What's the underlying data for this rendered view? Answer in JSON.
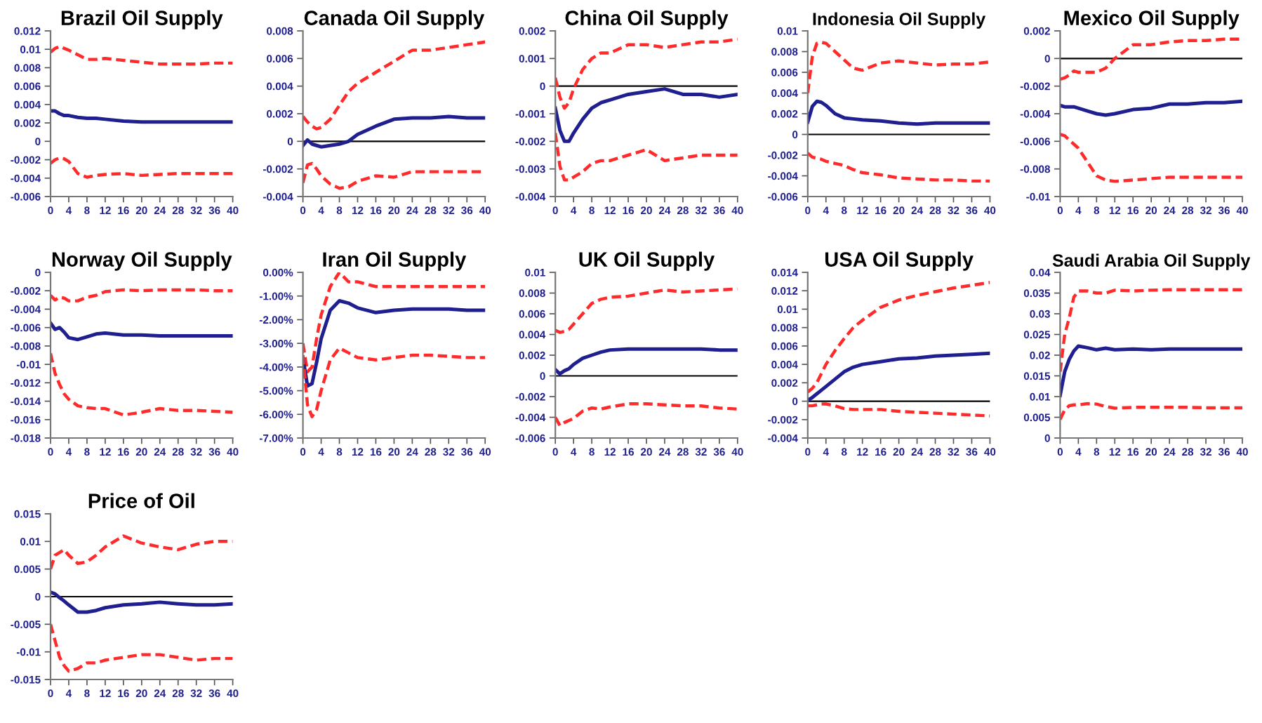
{
  "chart_data": [
    {
      "type": "line",
      "title": "Brazil Oil Supply",
      "x": [
        0,
        1,
        2,
        3,
        4,
        6,
        8,
        10,
        12,
        16,
        20,
        24,
        28,
        32,
        36,
        40
      ],
      "xlim": [
        0,
        40
      ],
      "xticks": [
        0,
        4,
        8,
        12,
        16,
        20,
        24,
        28,
        32,
        36,
        40
      ],
      "ylim": [
        -0.006,
        0.012
      ],
      "yticks": [
        -0.006,
        -0.004,
        -0.002,
        0,
        0.002,
        0.004,
        0.006,
        0.008,
        0.01,
        0.012
      ],
      "series": [
        {
          "color": "#ff2a2a",
          "line_style": "dashed",
          "values": [
            0.0097,
            0.0101,
            0.0103,
            0.0101,
            0.0099,
            0.0094,
            0.0089,
            0.0089,
            0.009,
            0.0088,
            0.0086,
            0.0084,
            0.0084,
            0.0084,
            0.0085,
            0.0085
          ]
        },
        {
          "color": "#1f1f8f",
          "line_style": "solid",
          "values": [
            0.0033,
            0.0033,
            0.003,
            0.0028,
            0.0028,
            0.0026,
            0.0025,
            0.0025,
            0.0024,
            0.0022,
            0.0021,
            0.0021,
            0.0021,
            0.0021,
            0.0021,
            0.0021
          ]
        },
        {
          "color": "#ff2a2a",
          "line_style": "dashed",
          "values": [
            -0.0024,
            -0.002,
            -0.0018,
            -0.0019,
            -0.0022,
            -0.0035,
            -0.0039,
            -0.0037,
            -0.0036,
            -0.0035,
            -0.0037,
            -0.0036,
            -0.0035,
            -0.0035,
            -0.0035,
            -0.0035
          ]
        }
      ]
    },
    {
      "type": "line",
      "title": "Canada Oil Supply",
      "x": [
        0,
        1,
        2,
        3,
        4,
        6,
        8,
        10,
        12,
        16,
        20,
        24,
        28,
        32,
        36,
        40
      ],
      "xlim": [
        0,
        40
      ],
      "xticks": [
        0,
        4,
        8,
        12,
        16,
        20,
        24,
        28,
        32,
        36,
        40
      ],
      "ylim": [
        -0.004,
        0.008
      ],
      "yticks": [
        -0.004,
        -0.002,
        0,
        0.002,
        0.004,
        0.006,
        0.008
      ],
      "ref_lines": [
        {
          "axis": "y",
          "value": 0
        }
      ],
      "series": [
        {
          "color": "#ff2a2a",
          "line_style": "dashed",
          "values": [
            0.0018,
            0.0014,
            0.0011,
            0.0009,
            0.001,
            0.0016,
            0.0026,
            0.0036,
            0.0042,
            0.005,
            0.0058,
            0.0066,
            0.0066,
            0.0068,
            0.007,
            0.0072
          ]
        },
        {
          "color": "#1f1f8f",
          "line_style": "solid",
          "values": [
            -0.0003,
            0.0001,
            -0.0002,
            -0.0003,
            -0.0004,
            -0.0003,
            -0.0002,
            0,
            0.0005,
            0.0011,
            0.0016,
            0.0017,
            0.0017,
            0.0018,
            0.0017,
            0.0017
          ]
        },
        {
          "color": "#ff2a2a",
          "line_style": "dashed",
          "values": [
            -0.003,
            -0.0017,
            -0.0016,
            -0.002,
            -0.0025,
            -0.0031,
            -0.0034,
            -0.0033,
            -0.0029,
            -0.0025,
            -0.0026,
            -0.0022,
            -0.0022,
            -0.0022,
            -0.0022,
            -0.0022
          ]
        }
      ]
    },
    {
      "type": "line",
      "title": "China Oil Supply",
      "x": [
        0,
        1,
        2,
        3,
        4,
        6,
        8,
        10,
        12,
        16,
        20,
        24,
        28,
        32,
        36,
        40
      ],
      "xlim": [
        0,
        40
      ],
      "xticks": [
        0,
        4,
        8,
        12,
        16,
        20,
        24,
        28,
        32,
        36,
        40
      ],
      "ylim": [
        -0.004,
        0.002
      ],
      "yticks": [
        -0.004,
        -0.003,
        -0.002,
        -0.001,
        0,
        0.001,
        0.002
      ],
      "ref_lines": [
        {
          "axis": "y",
          "value": 0
        }
      ],
      "series": [
        {
          "color": "#ff2a2a",
          "line_style": "dashed",
          "values": [
            0.0003,
            -0.0004,
            -0.0008,
            -0.0006,
            -0.0001,
            0.0006,
            0.001,
            0.0012,
            0.0012,
            0.0015,
            0.0015,
            0.0014,
            0.0015,
            0.0016,
            0.0016,
            0.0017
          ]
        },
        {
          "color": "#1f1f8f",
          "line_style": "solid",
          "values": [
            -0.0008,
            -0.0016,
            -0.002,
            -0.002,
            -0.0017,
            -0.0012,
            -0.0008,
            -0.0006,
            -0.0005,
            -0.0003,
            -0.0002,
            -0.0001,
            -0.0003,
            -0.0003,
            -0.0004,
            -0.0003
          ]
        },
        {
          "color": "#ff2a2a",
          "line_style": "dashed",
          "values": [
            -0.0017,
            -0.0029,
            -0.0034,
            -0.0034,
            -0.0033,
            -0.0031,
            -0.0028,
            -0.0027,
            -0.0027,
            -0.0025,
            -0.0023,
            -0.0027,
            -0.0026,
            -0.0025,
            -0.0025,
            -0.0025
          ]
        }
      ]
    },
    {
      "type": "line",
      "title": "Indonesia Oil Supply",
      "x": [
        0,
        1,
        2,
        3,
        4,
        6,
        8,
        10,
        12,
        16,
        20,
        24,
        28,
        32,
        36,
        40
      ],
      "xlim": [
        0,
        40
      ],
      "xticks": [
        0,
        4,
        8,
        12,
        16,
        20,
        24,
        28,
        32,
        36,
        40
      ],
      "ylim": [
        -0.006,
        0.01
      ],
      "yticks": [
        -0.006,
        -0.004,
        -0.002,
        0,
        0.002,
        0.004,
        0.006,
        0.008,
        0.01
      ],
      "ref_lines": [
        {
          "axis": "y",
          "value": 0
        }
      ],
      "series": [
        {
          "color": "#ff2a2a",
          "line_style": "dashed",
          "values": [
            0.004,
            0.0075,
            0.0088,
            0.0089,
            0.0088,
            0.008,
            0.0072,
            0.0064,
            0.0062,
            0.0069,
            0.0071,
            0.0069,
            0.0067,
            0.0068,
            0.0068,
            0.007
          ]
        },
        {
          "color": "#1f1f8f",
          "line_style": "solid",
          "values": [
            0.0012,
            0.0027,
            0.0032,
            0.0031,
            0.0028,
            0.002,
            0.0016,
            0.0015,
            0.0014,
            0.0013,
            0.0011,
            0.001,
            0.0011,
            0.0011,
            0.0011,
            0.0011
          ]
        },
        {
          "color": "#ff2a2a",
          "line_style": "dashed",
          "values": [
            -0.0018,
            -0.0022,
            -0.0023,
            -0.0024,
            -0.0026,
            -0.0028,
            -0.003,
            -0.0034,
            -0.0037,
            -0.0039,
            -0.0042,
            -0.0043,
            -0.0044,
            -0.0044,
            -0.0045,
            -0.0045
          ]
        }
      ]
    },
    {
      "type": "line",
      "title": "Mexico Oil Supply",
      "x": [
        0,
        1,
        2,
        3,
        4,
        6,
        8,
        10,
        12,
        16,
        20,
        24,
        28,
        32,
        36,
        40
      ],
      "xlim": [
        0,
        40
      ],
      "xticks": [
        0,
        4,
        8,
        12,
        16,
        20,
        24,
        28,
        32,
        36,
        40
      ],
      "ylim": [
        -0.01,
        0.002
      ],
      "yticks": [
        -0.01,
        -0.008,
        -0.006,
        -0.004,
        -0.002,
        0,
        0.002
      ],
      "ref_lines": [
        {
          "axis": "y",
          "value": 0
        }
      ],
      "series": [
        {
          "color": "#ff2a2a",
          "line_style": "dashed",
          "values": [
            -0.0015,
            -0.0014,
            -0.0012,
            -0.0009,
            -0.001,
            -0.001,
            -0.001,
            -0.0007,
            0,
            0.001,
            0.001,
            0.0012,
            0.0013,
            0.0013,
            0.0014,
            0.0014
          ]
        },
        {
          "color": "#1f1f8f",
          "line_style": "solid",
          "values": [
            -0.0034,
            -0.0035,
            -0.0035,
            -0.0035,
            -0.0036,
            -0.0038,
            -0.004,
            -0.0041,
            -0.004,
            -0.0037,
            -0.0036,
            -0.0033,
            -0.0033,
            -0.0032,
            -0.0032,
            -0.0031
          ]
        },
        {
          "color": "#ff2a2a",
          "line_style": "dashed",
          "values": [
            -0.0055,
            -0.0056,
            -0.0059,
            -0.0062,
            -0.0065,
            -0.0075,
            -0.0085,
            -0.0088,
            -0.0089,
            -0.0088,
            -0.0087,
            -0.0086,
            -0.0086,
            -0.0086,
            -0.0086,
            -0.0086
          ]
        }
      ]
    },
    {
      "type": "line",
      "title": "Norway Oil Supply",
      "x": [
        0,
        1,
        2,
        3,
        4,
        6,
        8,
        10,
        12,
        16,
        20,
        24,
        28,
        32,
        36,
        40
      ],
      "xlim": [
        0,
        40
      ],
      "xticks": [
        0,
        4,
        8,
        12,
        16,
        20,
        24,
        28,
        32,
        36,
        40
      ],
      "ylim": [
        -0.018,
        0
      ],
      "yticks": [
        -0.018,
        -0.016,
        -0.014,
        -0.012,
        -0.01,
        -0.008,
        -0.006,
        -0.004,
        -0.002,
        0
      ],
      "series": [
        {
          "color": "#ff2a2a",
          "line_style": "dashed",
          "values": [
            -0.0025,
            -0.003,
            -0.0027,
            -0.0028,
            -0.0031,
            -0.0031,
            -0.0027,
            -0.0025,
            -0.0021,
            -0.0019,
            -0.002,
            -0.0019,
            -0.0019,
            -0.0019,
            -0.002,
            -0.002
          ]
        },
        {
          "color": "#1f1f8f",
          "line_style": "solid",
          "values": [
            -0.0055,
            -0.0062,
            -0.006,
            -0.0065,
            -0.0071,
            -0.0073,
            -0.007,
            -0.0067,
            -0.0066,
            -0.0068,
            -0.0068,
            -0.0069,
            -0.0069,
            -0.0069,
            -0.0069,
            -0.0069
          ]
        },
        {
          "color": "#ff2a2a",
          "line_style": "dashed",
          "values": [
            -0.0088,
            -0.011,
            -0.0122,
            -0.0132,
            -0.0138,
            -0.0145,
            -0.0147,
            -0.0148,
            -0.0148,
            -0.0155,
            -0.0152,
            -0.0148,
            -0.015,
            -0.015,
            -0.0151,
            -0.0152
          ]
        }
      ]
    },
    {
      "type": "line",
      "title": "Iran Oil Supply",
      "x": [
        0,
        1,
        2,
        3,
        4,
        6,
        8,
        10,
        12,
        16,
        20,
        24,
        28,
        32,
        36,
        40
      ],
      "xlim": [
        0,
        40
      ],
      "xticks": [
        0,
        4,
        8,
        12,
        16,
        20,
        24,
        28,
        32,
        36,
        40
      ],
      "ylim": [
        -7,
        0
      ],
      "yticks": [
        {
          "value": -7,
          "label": "-7.00%"
        },
        {
          "value": -6,
          "label": "-6.00%"
        },
        {
          "value": -5,
          "label": "-5.00%"
        },
        {
          "value": -4,
          "label": "-4.00%"
        },
        {
          "value": -3,
          "label": "-3.00%"
        },
        {
          "value": -2,
          "label": "-2.00%"
        },
        {
          "value": -1,
          "label": "-1.00%"
        },
        {
          "value": 0,
          "label": "0.00%"
        }
      ],
      "series": [
        {
          "color": "#ff2a2a",
          "line_style": "dashed",
          "values": [
            -3.0,
            -4.2,
            -4.0,
            -2.8,
            -1.8,
            -0.6,
            0.0,
            -0.4,
            -0.4,
            -0.6,
            -0.6,
            -0.6,
            -0.6,
            -0.6,
            -0.6,
            -0.6
          ]
        },
        {
          "color": "#1f1f8f",
          "line_style": "solid",
          "values": [
            -3.6,
            -4.8,
            -4.7,
            -3.8,
            -2.8,
            -1.6,
            -1.2,
            -1.3,
            -1.5,
            -1.7,
            -1.6,
            -1.55,
            -1.55,
            -1.55,
            -1.6,
            -1.6
          ]
        },
        {
          "color": "#ff2a2a",
          "line_style": "dashed",
          "values": [
            -3.5,
            -5.6,
            -6.1,
            -5.8,
            -5.0,
            -3.7,
            -3.2,
            -3.4,
            -3.6,
            -3.7,
            -3.6,
            -3.5,
            -3.5,
            -3.55,
            -3.6,
            -3.6
          ]
        }
      ]
    },
    {
      "type": "line",
      "title": "UK Oil Supply",
      "x": [
        0,
        1,
        2,
        3,
        4,
        6,
        8,
        10,
        12,
        16,
        20,
        24,
        28,
        32,
        36,
        40
      ],
      "xlim": [
        0,
        40
      ],
      "xticks": [
        0,
        4,
        8,
        12,
        16,
        20,
        24,
        28,
        32,
        36,
        40
      ],
      "ylim": [
        -0.006,
        0.01
      ],
      "yticks": [
        -0.006,
        -0.004,
        -0.002,
        0,
        0.002,
        0.004,
        0.006,
        0.008,
        0.01
      ],
      "ref_lines": [
        {
          "axis": "y",
          "value": 0
        }
      ],
      "series": [
        {
          "color": "#ff2a2a",
          "line_style": "dashed",
          "values": [
            0.0044,
            0.0042,
            0.0043,
            0.0045,
            0.005,
            0.006,
            0.007,
            0.0074,
            0.0076,
            0.0077,
            0.008,
            0.0083,
            0.0081,
            0.0082,
            0.0083,
            0.0084
          ]
        },
        {
          "color": "#1f1f8f",
          "line_style": "solid",
          "values": [
            0.0006,
            0.0002,
            0.0005,
            0.0007,
            0.0011,
            0.0017,
            0.002,
            0.0023,
            0.0025,
            0.0026,
            0.0026,
            0.0026,
            0.0026,
            0.0026,
            0.0025,
            0.0025
          ]
        },
        {
          "color": "#ff2a2a",
          "line_style": "dashed",
          "values": [
            -0.004,
            -0.0048,
            -0.0045,
            -0.0043,
            -0.0041,
            -0.0034,
            -0.0031,
            -0.0032,
            -0.003,
            -0.0027,
            -0.0027,
            -0.0028,
            -0.0029,
            -0.0029,
            -0.0031,
            -0.0032
          ]
        }
      ]
    },
    {
      "type": "line",
      "title": "USA Oil Supply",
      "x": [
        0,
        1,
        2,
        3,
        4,
        6,
        8,
        10,
        12,
        16,
        20,
        24,
        28,
        32,
        36,
        40
      ],
      "xlim": [
        0,
        40
      ],
      "xticks": [
        0,
        4,
        8,
        12,
        16,
        20,
        24,
        28,
        32,
        36,
        40
      ],
      "ylim": [
        -0.004,
        0.014
      ],
      "yticks": [
        -0.004,
        -0.002,
        0,
        0.002,
        0.004,
        0.006,
        0.008,
        0.01,
        0.012,
        0.014
      ],
      "ref_lines": [
        {
          "axis": "y",
          "value": 0
        }
      ],
      "series": [
        {
          "color": "#ff2a2a",
          "line_style": "dashed",
          "values": [
            0.001,
            0.0014,
            0.002,
            0.003,
            0.004,
            0.0055,
            0.0068,
            0.008,
            0.0088,
            0.0102,
            0.011,
            0.0115,
            0.0119,
            0.0123,
            0.0126,
            0.0129
          ]
        },
        {
          "color": "#1f1f8f",
          "line_style": "solid",
          "values": [
            0.0001,
            0.0004,
            0.0008,
            0.0012,
            0.0016,
            0.0024,
            0.0032,
            0.0037,
            0.004,
            0.0043,
            0.0046,
            0.0047,
            0.0049,
            0.005,
            0.0051,
            0.0052
          ]
        },
        {
          "color": "#ff2a2a",
          "line_style": "dashed",
          "values": [
            -0.0005,
            -0.0005,
            -0.0004,
            -0.0003,
            -0.0003,
            -0.0005,
            -0.0008,
            -0.0009,
            -0.0009,
            -0.0009,
            -0.0011,
            -0.0012,
            -0.0013,
            -0.0014,
            -0.0015,
            -0.0016
          ]
        }
      ]
    },
    {
      "type": "line",
      "title": "Saudi Arabia Oil Supply",
      "x": [
        0,
        1,
        2,
        3,
        4,
        6,
        8,
        10,
        12,
        16,
        20,
        24,
        28,
        32,
        36,
        40
      ],
      "xlim": [
        0,
        40
      ],
      "xticks": [
        0,
        4,
        8,
        12,
        16,
        20,
        24,
        28,
        32,
        36,
        40
      ],
      "ylim": [
        0,
        0.04
      ],
      "yticks": [
        0,
        0.005,
        0.01,
        0.015,
        0.02,
        0.025,
        0.03,
        0.035,
        0.04
      ],
      "series": [
        {
          "color": "#ff2a2a",
          "line_style": "dashed",
          "values": [
            0.016,
            0.025,
            0.029,
            0.034,
            0.0355,
            0.0355,
            0.035,
            0.035,
            0.0357,
            0.0355,
            0.0357,
            0.0358,
            0.0358,
            0.0358,
            0.0358,
            0.0358
          ]
        },
        {
          "color": "#1f1f8f",
          "line_style": "solid",
          "values": [
            0.0103,
            0.016,
            0.019,
            0.021,
            0.0222,
            0.0218,
            0.0213,
            0.0217,
            0.0213,
            0.0215,
            0.0213,
            0.0215,
            0.0215,
            0.0215,
            0.0215,
            0.0215
          ]
        },
        {
          "color": "#ff2a2a",
          "line_style": "dashed",
          "values": [
            0.0045,
            0.0068,
            0.0078,
            0.008,
            0.008,
            0.0083,
            0.0082,
            0.0076,
            0.0072,
            0.0074,
            0.0074,
            0.0074,
            0.0074,
            0.0073,
            0.0073,
            0.0073
          ]
        }
      ]
    },
    {
      "type": "line",
      "title": "Price of Oil",
      "x": [
        0,
        1,
        2,
        3,
        4,
        6,
        8,
        10,
        12,
        16,
        20,
        24,
        28,
        32,
        36,
        40
      ],
      "xlim": [
        0,
        40
      ],
      "xticks": [
        0,
        4,
        8,
        12,
        16,
        20,
        24,
        28,
        32,
        36,
        40
      ],
      "ylim": [
        -0.015,
        0.015
      ],
      "yticks": [
        -0.015,
        -0.01,
        -0.005,
        0,
        0.005,
        0.01,
        0.015
      ],
      "ref_lines": [
        {
          "axis": "y",
          "value": 0
        }
      ],
      "series": [
        {
          "color": "#ff2a2a",
          "line_style": "dashed",
          "values": [
            0.005,
            0.0075,
            0.008,
            0.0085,
            0.0075,
            0.006,
            0.0063,
            0.0075,
            0.009,
            0.011,
            0.0097,
            0.009,
            0.0085,
            0.0095,
            0.01,
            0.01
          ]
        },
        {
          "color": "#1f1f8f",
          "line_style": "solid",
          "values": [
            0.0008,
            0.0005,
            -0.0002,
            -0.0008,
            -0.0015,
            -0.0028,
            -0.0028,
            -0.0025,
            -0.002,
            -0.0015,
            -0.0013,
            -0.001,
            -0.0013,
            -0.0015,
            -0.0015,
            -0.0013
          ]
        },
        {
          "color": "#ff2a2a",
          "line_style": "dashed",
          "values": [
            -0.005,
            -0.008,
            -0.011,
            -0.0125,
            -0.0135,
            -0.013,
            -0.012,
            -0.012,
            -0.0115,
            -0.011,
            -0.0105,
            -0.0105,
            -0.011,
            -0.0115,
            -0.0112,
            -0.0112
          ]
        }
      ]
    }
  ]
}
